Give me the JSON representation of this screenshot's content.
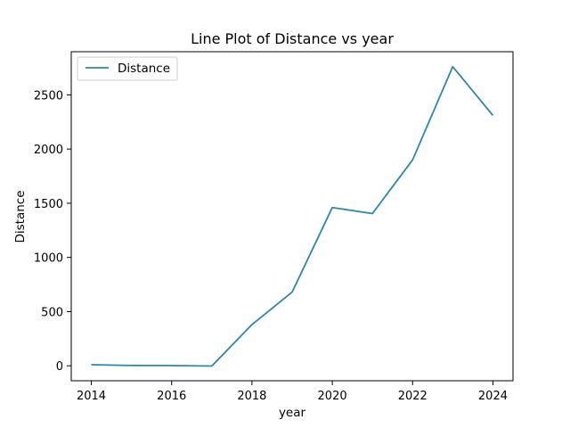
{
  "chart_data": {
    "type": "line",
    "title": "Line Plot of Distance vs year",
    "xlabel": "year",
    "ylabel": "Distance",
    "x": [
      2014,
      2015,
      2016,
      2017,
      2018,
      2019,
      2020,
      2021,
      2022,
      2023,
      2024
    ],
    "series": [
      {
        "name": "Distance",
        "values": [
          10,
          3,
          2,
          -2,
          380,
          680,
          1460,
          1405,
          1900,
          2760,
          2310
        ],
        "color": "#2e86ab"
      }
    ],
    "xticks": [
      2014,
      2016,
      2018,
      2020,
      2022,
      2024
    ],
    "yticks": [
      0,
      500,
      1000,
      1500,
      2000,
      2500
    ],
    "xlim": [
      2013.5,
      2024.5
    ],
    "ylim": [
      -138,
      2898
    ],
    "grid": false,
    "legend_position": "top-left"
  }
}
